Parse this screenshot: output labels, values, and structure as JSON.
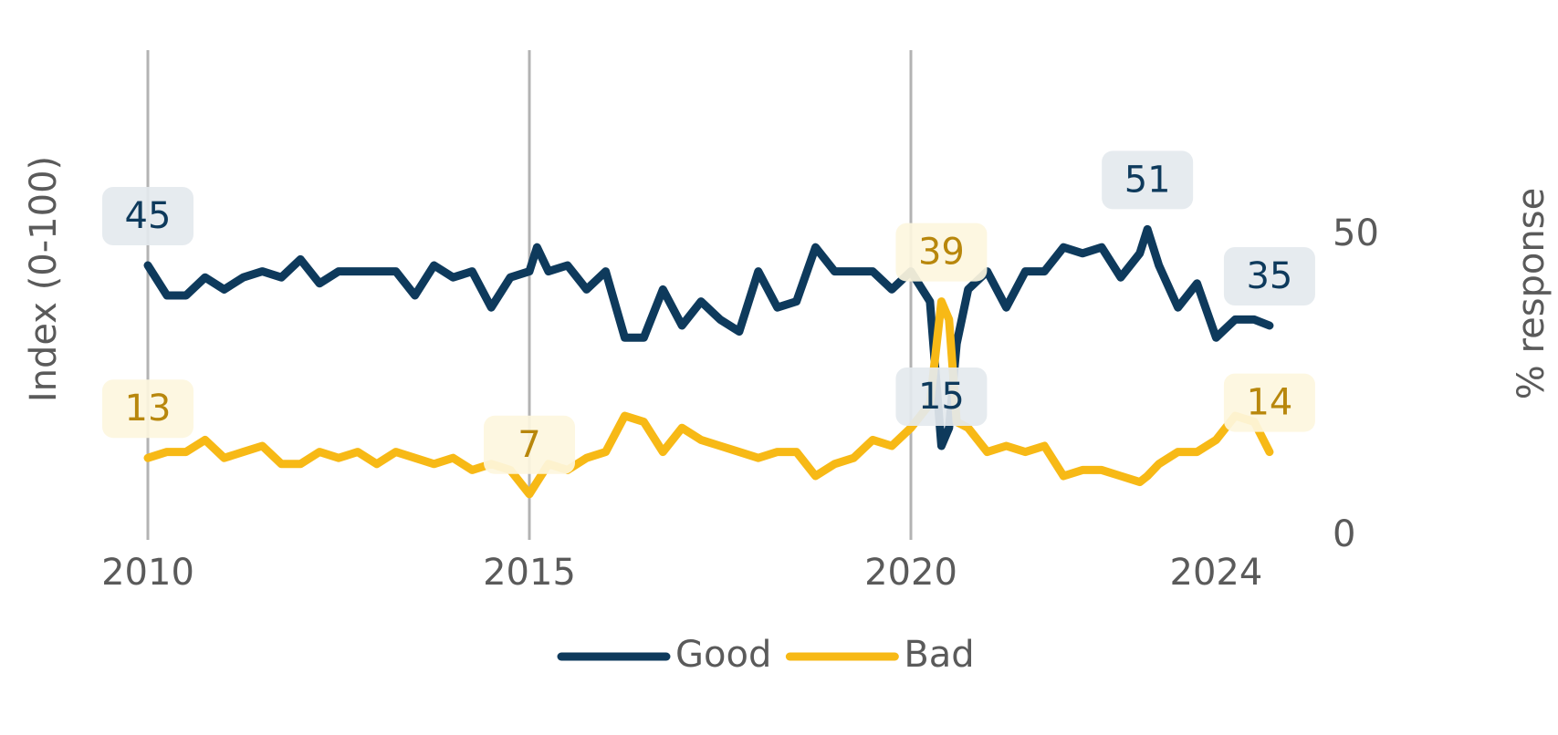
{
  "chart_data": {
    "type": "line",
    "ylabel_left": "Index (0-100)",
    "ylabel_right": "% response",
    "xlim": [
      2009,
      2025
    ],
    "xticks": [
      2010,
      2015,
      2020,
      2024
    ],
    "xgrid": [
      2010,
      2015,
      2020
    ],
    "ylim": [
      0,
      80
    ],
    "yticks": [
      0,
      50
    ],
    "x": [
      2010,
      2010.25,
      2010.5,
      2010.75,
      2011,
      2011.25,
      2011.5,
      2011.75,
      2012,
      2012.25,
      2012.5,
      2012.75,
      2013,
      2013.25,
      2013.5,
      2013.75,
      2014,
      2014.25,
      2014.5,
      2014.75,
      2015,
      2015.1,
      2015.25,
      2015.5,
      2015.75,
      2016,
      2016.25,
      2016.5,
      2016.75,
      2017,
      2017.25,
      2017.5,
      2017.75,
      2018,
      2018.25,
      2018.5,
      2018.75,
      2019,
      2019.25,
      2019.5,
      2019.75,
      2020,
      2020.25,
      2020.4,
      2020.5,
      2020.6,
      2020.75,
      2021,
      2021.25,
      2021.5,
      2021.75,
      2022,
      2022.25,
      2022.5,
      2022.75,
      2023,
      2023.1,
      2023.25,
      2023.5,
      2023.75,
      2024,
      2024.25,
      2024.5,
      2024.7
    ],
    "series": [
      {
        "name": "Good",
        "color": "#0e3a5c",
        "label_color": "#0e3a5c",
        "label_fill": "#e4e9ee",
        "values": [
          45,
          40,
          40,
          43,
          41,
          43,
          44,
          43,
          46,
          42,
          44,
          44,
          44,
          44,
          40,
          45,
          43,
          44,
          38,
          43,
          44,
          48,
          44,
          45,
          41,
          44,
          33,
          33,
          41,
          35,
          39,
          36,
          34,
          44,
          38,
          39,
          48,
          44,
          44,
          44,
          41,
          44,
          39,
          15,
          18,
          32,
          41,
          44,
          38,
          44,
          44,
          48,
          47,
          48,
          43,
          47,
          51,
          45,
          38,
          42,
          33,
          36,
          36,
          35
        ]
      },
      {
        "name": "Bad",
        "color": "#f7b916",
        "label_color": "#b8870c",
        "label_fill": "#fdf6de",
        "values": [
          13,
          14,
          14,
          16,
          13,
          14,
          15,
          12,
          12,
          14,
          13,
          14,
          12,
          14,
          13,
          12,
          13,
          11,
          12,
          11,
          7,
          9,
          12,
          11,
          13,
          14,
          20,
          19,
          14,
          18,
          16,
          15,
          14,
          13,
          14,
          14,
          10,
          12,
          13,
          16,
          15,
          18,
          22,
          39,
          36,
          19,
          18,
          14,
          15,
          14,
          15,
          10,
          11,
          11,
          10,
          9,
          10,
          12,
          14,
          14,
          16,
          20,
          19,
          14
        ]
      }
    ],
    "annotations": [
      {
        "series": "Good",
        "x": 2010,
        "value": 45
      },
      {
        "series": "Bad",
        "x": 2010,
        "value": 13
      },
      {
        "series": "Bad",
        "x": 2015,
        "value": 7
      },
      {
        "series": "Bad",
        "x": 2020.4,
        "value": 39
      },
      {
        "series": "Good",
        "x": 2020.4,
        "value": 15
      },
      {
        "series": "Good",
        "x": 2023.1,
        "value": 51
      },
      {
        "series": "Good",
        "x": 2024.7,
        "value": 35
      },
      {
        "series": "Bad",
        "x": 2024.7,
        "value": 14
      }
    ]
  }
}
